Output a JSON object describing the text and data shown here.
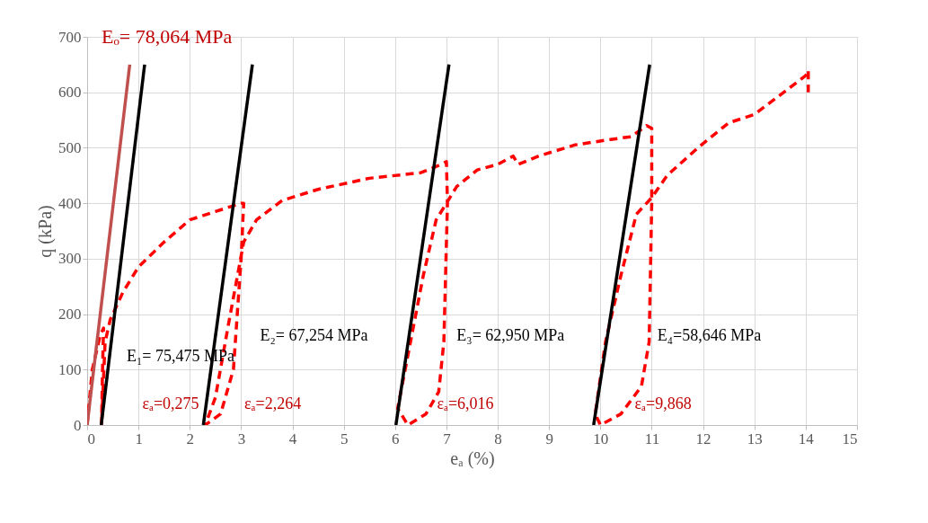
{
  "chart_data": {
    "type": "line",
    "xlabel": "eₐ (%)",
    "ylabel": "q  (kPa)",
    "xlim": [
      0,
      15
    ],
    "ylim": [
      0,
      700
    ],
    "xticks": [
      0,
      1,
      2,
      3,
      4,
      5,
      6,
      7,
      8,
      9,
      10,
      11,
      12,
      13,
      14,
      15
    ],
    "yticks": [
      0,
      100,
      200,
      300,
      400,
      500,
      600,
      700
    ],
    "grid": true,
    "series": [
      {
        "color": "#ff0000",
        "line_style": "dashed",
        "x": [
          0,
          0.1,
          0.25,
          0.32,
          0.3,
          0.28,
          0.35,
          0.45,
          0.7,
          1.0,
          1.5,
          2.0,
          2.5,
          3.0,
          3.05,
          3.0,
          2.85,
          2.6,
          2.3,
          2.5,
          2.75,
          2.95,
          3.05,
          3.3,
          3.8,
          4.5,
          5.5,
          6.5,
          6.9,
          7.0,
          7.02,
          6.95,
          6.85,
          6.6,
          6.25,
          6.05,
          6.3,
          6.55,
          6.8,
          7.0,
          7.2,
          7.6,
          8.0,
          8.3,
          8.4,
          8.8,
          9.5,
          10.2,
          10.6,
          10.9,
          11.0,
          11.0,
          10.95,
          10.8,
          10.4,
          10.0,
          9.9,
          10.1,
          10.4,
          10.7,
          11.0,
          11.3,
          11.9,
          12.5,
          13.0,
          13.5,
          14.0,
          14.05,
          14.05
        ],
        "values": [
          0,
          100,
          160,
          175,
          100,
          0,
          150,
          190,
          240,
          285,
          330,
          370,
          385,
          400,
          400,
          300,
          100,
          20,
          0,
          50,
          180,
          280,
          330,
          370,
          405,
          425,
          445,
          455,
          470,
          475,
          400,
          150,
          60,
          20,
          0,
          30,
          150,
          270,
          370,
          400,
          430,
          460,
          470,
          485,
          470,
          485,
          505,
          515,
          520,
          540,
          535,
          400,
          150,
          70,
          20,
          0,
          20,
          150,
          270,
          380,
          410,
          450,
          500,
          545,
          560,
          595,
          630,
          640,
          600
        ]
      },
      {
        "color": "#c0504d",
        "line_style": "solid",
        "x": [
          0,
          0.83
        ],
        "values": [
          0,
          650
        ]
      },
      {
        "color": "#000000",
        "line_style": "solid",
        "x": [
          0.275,
          1.12
        ],
        "values": [
          0,
          650
        ]
      },
      {
        "color": "#000000",
        "line_style": "solid",
        "x": [
          2.264,
          3.22
        ],
        "values": [
          0,
          650
        ]
      },
      {
        "color": "#000000",
        "line_style": "solid",
        "x": [
          6.016,
          7.05
        ],
        "values": [
          0,
          650
        ]
      },
      {
        "color": "#000000",
        "line_style": "solid",
        "x": [
          9.868,
          10.96
        ],
        "values": [
          0,
          650
        ]
      }
    ],
    "annotations": [
      "Eₒ= 78,064 MPa",
      "E₁= 75,475 MPa",
      "E₂= 67,254 MPa",
      "E₃= 62,950 MPa",
      "E₄=58,646 MPa",
      "εₐ=0,275",
      "εₐ=2,264",
      "εₐ=6,016",
      "εₐ=9,868"
    ]
  }
}
